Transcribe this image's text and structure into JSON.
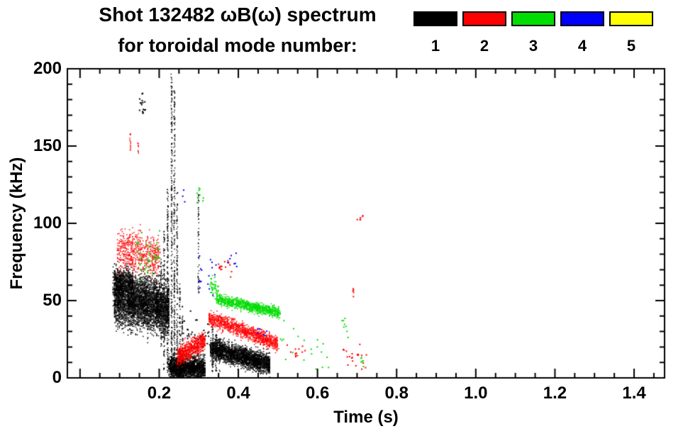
{
  "chart_data": {
    "type": "scatter",
    "title": "Shot 132482 ωB(ω) spectrum",
    "subtitle": "for toroidal mode number:",
    "xlabel": "Time (s)",
    "ylabel": "Frequency (kHz)",
    "xlim": [
      -0.032,
      1.477
    ],
    "ylim": [
      0,
      200
    ],
    "x_minor": 0.05,
    "y_minor": 10,
    "x_ticks": [
      {
        "v": 0.2,
        "label": "0.2"
      },
      {
        "v": 0.4,
        "label": "0.4"
      },
      {
        "v": 0.6,
        "label": "0.6"
      },
      {
        "v": 0.8,
        "label": "0.8"
      },
      {
        "v": 1.0,
        "label": "1.0"
      },
      {
        "v": 1.2,
        "label": "1.2"
      },
      {
        "v": 1.4,
        "label": "1.4"
      }
    ],
    "y_ticks": [
      {
        "v": 0,
        "label": "0"
      },
      {
        "v": 50,
        "label": "50"
      },
      {
        "v": 100,
        "label": "100"
      },
      {
        "v": 150,
        "label": "150"
      },
      {
        "v": 200,
        "label": "200"
      }
    ],
    "legend": [
      {
        "label": "1",
        "color": "#000000"
      },
      {
        "label": "2",
        "color": "#ff0000"
      },
      {
        "label": "3",
        "color": "#00dd00"
      },
      {
        "label": "4",
        "color": "#0000ff"
      },
      {
        "label": "5",
        "color": "#ffff00"
      }
    ],
    "series": [
      {
        "name": "mode 1",
        "color": "#000000",
        "bands": [
          {
            "t0": 0.085,
            "t1": 0.225,
            "f0": 53,
            "f1": 45,
            "sd": 8.5,
            "n": 4200,
            "streak": 1
          },
          {
            "t0": 0.085,
            "t1": 0.135,
            "f0": 63,
            "f1": 61,
            "sd": 4,
            "n": 450,
            "streak": 1
          },
          {
            "t0": 0.225,
            "t1": 0.315,
            "f0": 7,
            "f1": 6,
            "sd": 3.8,
            "n": 2100,
            "streak": 1
          },
          {
            "t0": 0.33,
            "t1": 0.48,
            "f0": 19,
            "f1": 9,
            "sd": 3.2,
            "n": 2600,
            "streak": 1
          },
          {
            "t0": 0.25,
            "t1": 0.33,
            "f0": 30,
            "f1": 24,
            "sd": 8,
            "n": 45,
            "s": 2
          },
          {
            "t0": 0.15,
            "t1": 0.166,
            "f0": 178,
            "f1": 174,
            "sd": 4,
            "n": 16,
            "s": 2
          }
        ],
        "spikes": [
          {
            "t": 0.205,
            "f0": 20,
            "f1": 78,
            "n": 55
          },
          {
            "t": 0.2125,
            "f0": 5,
            "f1": 95,
            "n": 90
          },
          {
            "t": 0.2215,
            "f0": 2,
            "f1": 122,
            "n": 150
          },
          {
            "t": 0.2315,
            "f0": 2,
            "f1": 197,
            "n": 250
          },
          {
            "t": 0.2385,
            "f0": 2,
            "f1": 186,
            "n": 210
          },
          {
            "t": 0.2455,
            "f0": 2,
            "f1": 120,
            "n": 130
          },
          {
            "t": 0.252,
            "f0": 2,
            "f1": 62,
            "n": 65
          },
          {
            "t": 0.2585,
            "f0": 2,
            "f1": 40,
            "n": 45
          },
          {
            "t": 0.2995,
            "f0": 55,
            "f1": 122,
            "n": 60
          },
          {
            "t": 0.335,
            "f0": 4,
            "f1": 34,
            "n": 55
          },
          {
            "t": 0.344,
            "f0": 4,
            "f1": 30,
            "n": 42
          },
          {
            "t": 0.353,
            "f0": 4,
            "f1": 26,
            "n": 32
          }
        ]
      },
      {
        "name": "mode 2",
        "color": "#ff0000",
        "bands": [
          {
            "t0": 0.095,
            "t1": 0.2,
            "f0": 82,
            "f1": 79,
            "sd": 6.5,
            "n": 620,
            "streak": 1
          },
          {
            "t0": 0.245,
            "t1": 0.315,
            "f0": 13,
            "f1": 24,
            "sd": 3,
            "n": 780,
            "streak": 1
          },
          {
            "t0": 0.325,
            "t1": 0.5,
            "f0": 39,
            "f1": 22,
            "sd": 2.3,
            "n": 1250,
            "streak": 1
          },
          {
            "t0": 0.35,
            "t1": 0.385,
            "f0": 72,
            "f1": 70,
            "sd": 2.5,
            "n": 16,
            "s": 2
          },
          {
            "t0": 0.52,
            "t1": 0.575,
            "f0": 17,
            "f1": 16,
            "sd": 2,
            "n": 13,
            "s": 2
          },
          {
            "t0": 0.665,
            "t1": 0.725,
            "f0": 18,
            "f1": 13,
            "sd": 6,
            "n": 20,
            "s": 2
          },
          {
            "t0": 0.7,
            "t1": 0.716,
            "f0": 103,
            "f1": 103,
            "sd": 1.5,
            "n": 6,
            "s": 2
          },
          {
            "t0": 0.685,
            "t1": 0.695,
            "f0": 57,
            "f1": 56,
            "sd": 2,
            "n": 5,
            "s": 2
          }
        ],
        "spikes": [
          {
            "t": 0.127,
            "f0": 147,
            "f1": 158,
            "n": 16
          },
          {
            "t": 0.147,
            "f0": 144,
            "f1": 152,
            "n": 11
          }
        ]
      },
      {
        "name": "mode 3",
        "color": "#00dd00",
        "bands": [
          {
            "t0": 0.345,
            "t1": 0.505,
            "f0": 51,
            "f1": 42,
            "sd": 1.7,
            "n": 1050,
            "streak": 1
          },
          {
            "t0": 0.328,
            "t1": 0.352,
            "f0": 60,
            "f1": 56,
            "sd": 3.5,
            "n": 65
          },
          {
            "t0": 0.14,
            "t1": 0.21,
            "f0": 80,
            "f1": 77,
            "sd": 8,
            "n": 42,
            "streak": 1,
            "s": 2
          },
          {
            "t0": 0.5,
            "t1": 0.63,
            "f0": 22,
            "f1": 14,
            "sd": 8,
            "n": 20,
            "s": 2
          },
          {
            "t0": 0.295,
            "t1": 0.312,
            "f0": 118,
            "f1": 117,
            "sd": 3,
            "n": 9,
            "s": 2
          },
          {
            "t0": 0.662,
            "t1": 0.678,
            "f0": 34,
            "f1": 33,
            "sd": 3,
            "n": 8,
            "s": 2
          },
          {
            "t0": 0.705,
            "t1": 0.72,
            "f0": 12,
            "f1": 11,
            "sd": 2,
            "n": 6,
            "s": 2
          }
        ],
        "spikes": []
      },
      {
        "name": "mode 4",
        "color": "#0000ff",
        "bands": [
          {
            "t0": 0.3,
            "t1": 0.345,
            "f0": 72,
            "f1": 68,
            "sd": 7,
            "n": 16,
            "s": 2
          },
          {
            "t0": 0.36,
            "t1": 0.4,
            "f0": 76,
            "f1": 75,
            "sd": 3,
            "n": 7,
            "s": 2
          },
          {
            "t0": 0.44,
            "t1": 0.475,
            "f0": 30,
            "f1": 29,
            "sd": 2,
            "n": 6,
            "s": 2
          },
          {
            "t0": 0.258,
            "t1": 0.268,
            "f0": 118,
            "f1": 117,
            "sd": 2,
            "n": 3,
            "s": 2
          }
        ],
        "spikes": []
      },
      {
        "name": "mode 5",
        "color": "#ffff00",
        "bands": [],
        "spikes": []
      }
    ]
  }
}
